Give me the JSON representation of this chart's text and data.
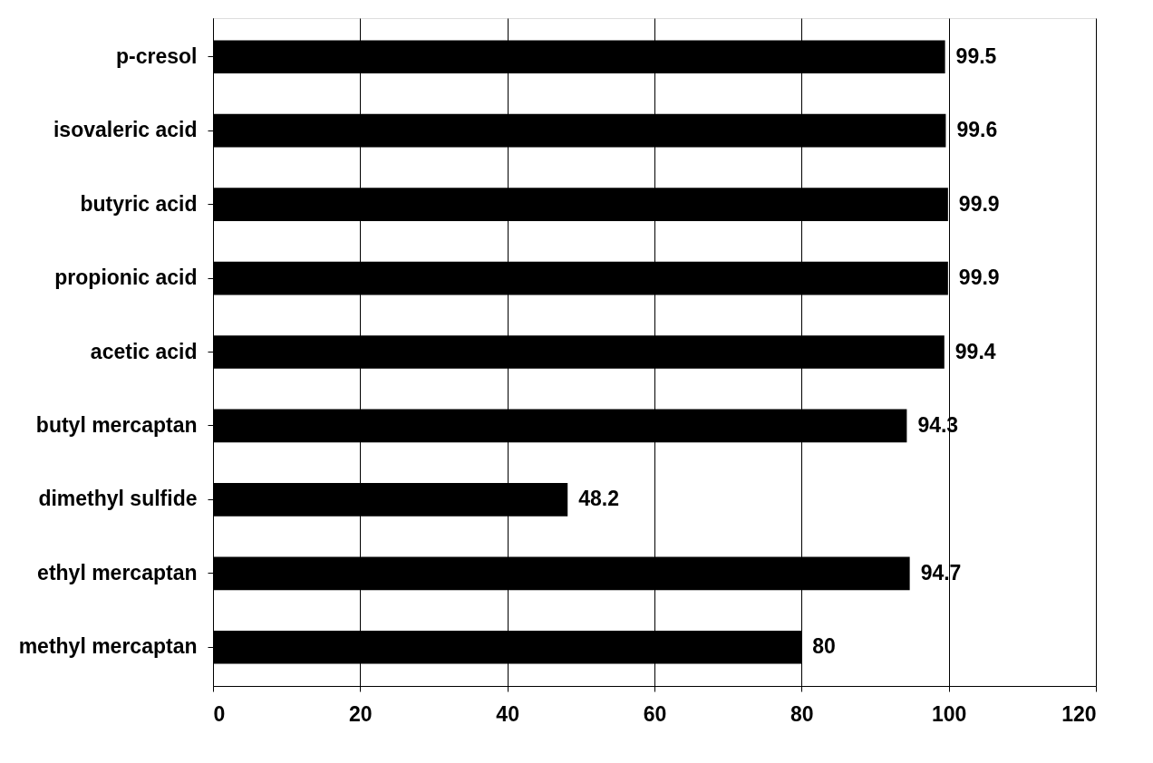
{
  "chart_data": {
    "type": "bar",
    "orientation": "horizontal",
    "categories": [
      "p-cresol",
      "isovaleric acid",
      "butyric acid",
      "propionic acid",
      "acetic acid",
      "butyl mercaptan",
      "dimethyl sulfide",
      "ethyl mercaptan",
      "methyl mercaptan"
    ],
    "values": [
      99.5,
      99.6,
      99.9,
      99.9,
      99.4,
      94.3,
      48.2,
      94.7,
      80
    ],
    "color": "#000000",
    "xlim": [
      0,
      120
    ],
    "xticks": [
      0,
      20,
      40,
      60,
      80,
      100,
      120
    ],
    "grid": "x",
    "data_labels": true
  }
}
